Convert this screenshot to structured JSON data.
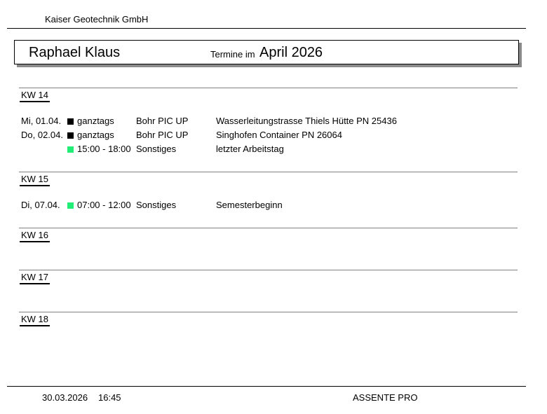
{
  "header": {
    "company": "Kaiser Geotechnik GmbH"
  },
  "title_box": {
    "person": "Raphael Klaus",
    "termine_label": "Termine im",
    "month": "April 2026"
  },
  "colors": {
    "allday_marker": "#000000",
    "other_marker": "#22ee77"
  },
  "weeks": [
    {
      "label": "KW 14",
      "entries": [
        {
          "date": "Mi,  01.04.",
          "marker": "black",
          "time": "ganztags",
          "type": "Bohr PIC UP",
          "description": "Wasserleitungstrasse Thiels Hütte PN 25436"
        },
        {
          "date": "Do, 02.04.",
          "marker": "black",
          "time": "ganztags",
          "type": "Bohr PIC UP",
          "description": "Singhofen Container PN 26064"
        },
        {
          "date": "",
          "marker": "green",
          "time": "15:00 - 18:00",
          "type": "Sonstiges",
          "description": "letzter Arbeitstag"
        }
      ]
    },
    {
      "label": "KW 15",
      "entries": [
        {
          "date": "Di,  07.04.",
          "marker": "green",
          "time": "07:00 - 12:00",
          "type": "Sonstiges",
          "description": "Semesterbeginn"
        }
      ]
    },
    {
      "label": "KW 16",
      "entries": []
    },
    {
      "label": "KW 17",
      "entries": []
    },
    {
      "label": "KW 18",
      "entries": []
    }
  ],
  "footer": {
    "date": "30.03.2026",
    "time": "16:45",
    "product": "ASSENTE PRO"
  }
}
